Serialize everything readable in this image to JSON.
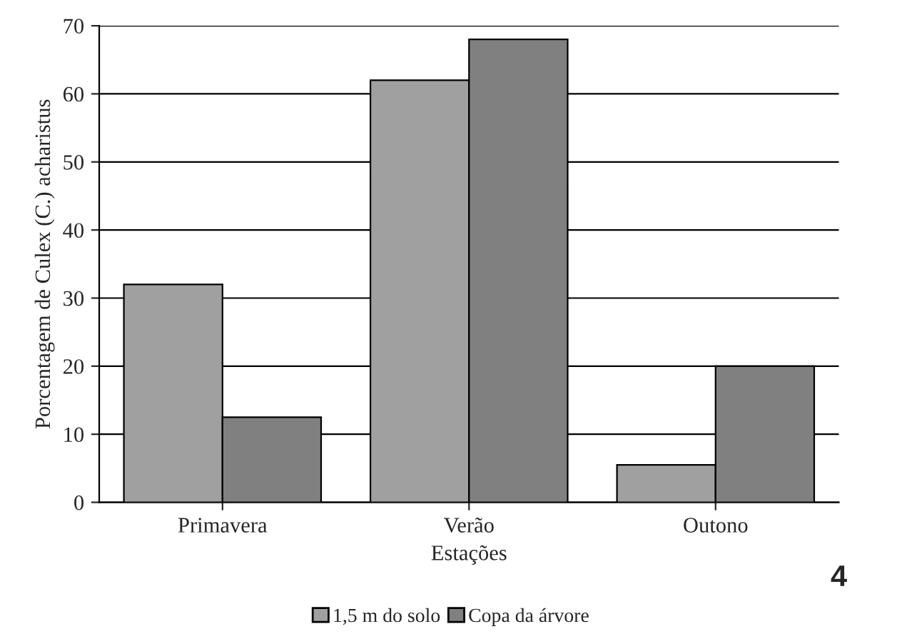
{
  "chart_data": {
    "type": "bar",
    "xlabel": "Estações",
    "ylabel": "Porcentagem de Culex (C.) acharistus",
    "categories": [
      "Primavera",
      "Verão",
      "Outono"
    ],
    "series": [
      {
        "name": "1,5 m do solo",
        "color": "#a0a0a0",
        "values": [
          32,
          62,
          5.5
        ]
      },
      {
        "name": "Copa da árvore",
        "color": "#808080",
        "values": [
          12.5,
          68,
          20
        ]
      }
    ],
    "ylim": [
      0,
      70
    ],
    "yticks": [
      0,
      10,
      20,
      30,
      40,
      50,
      60,
      70
    ],
    "grid": "y",
    "legend": "bottom",
    "annotations": [
      "4"
    ]
  }
}
